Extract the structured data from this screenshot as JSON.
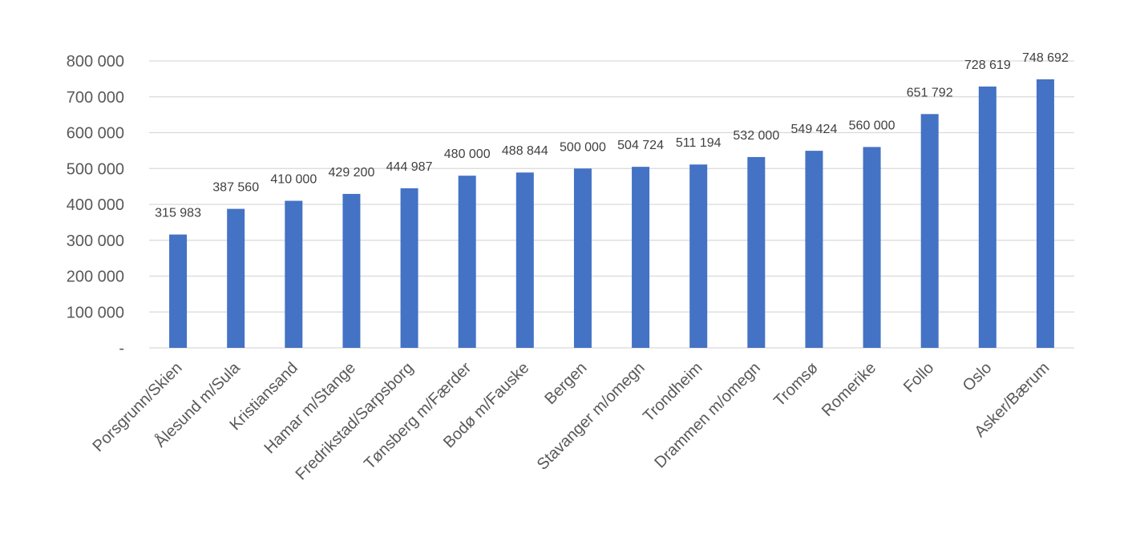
{
  "chart_data": {
    "type": "bar",
    "title": "",
    "xlabel": "",
    "ylabel": "",
    "categories": [
      "Porsgrunn/Skien",
      "Ålesund m/Sula",
      "Kristiansand",
      "Hamar m/Stange",
      "Fredrikstad/Sarpsborg",
      "Tønsberg m/Færder",
      "Bodø m/Fauske",
      "Bergen",
      "Stavanger m/omegn",
      "Trondheim",
      "Drammen m/omegn",
      "Tromsø",
      "Romerike",
      "Follo",
      "Oslo",
      "Asker/Bærum"
    ],
    "values": [
      315983,
      387560,
      410000,
      429200,
      444987,
      480000,
      488844,
      500000,
      504724,
      511194,
      532000,
      549424,
      560000,
      651792,
      728619,
      748692
    ],
    "data_labels": [
      "315 983",
      "387 560",
      "410 000",
      "429 200",
      "444 987",
      "480 000",
      "488 844",
      "500 000",
      "504 724",
      "511 194",
      "532 000",
      "549 424",
      "560 000",
      "651 792",
      "728 619",
      "748 692"
    ],
    "ylim": [
      0,
      800000
    ],
    "y_ticks": [
      0,
      100000,
      200000,
      300000,
      400000,
      500000,
      600000,
      700000,
      800000
    ],
    "y_tick_labels": [
      "-",
      "100 000",
      "200 000",
      "300 000",
      "400 000",
      "500 000",
      "600 000",
      "700 000",
      "800 000"
    ],
    "grid": true,
    "legend": "none",
    "bar_color": "#4472c4",
    "grid_color": "#d9d9d9",
    "text_color": "#595959"
  }
}
